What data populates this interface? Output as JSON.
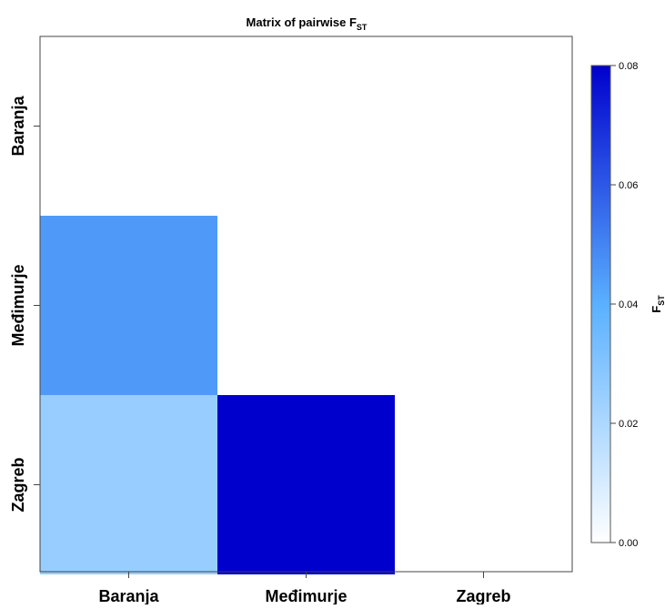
{
  "chart_data": {
    "type": "heatmap",
    "title": "Matrix of pairwise F",
    "title_subscript": "ST",
    "x_categories": [
      "Baranja",
      "Međimurje",
      "Zagreb"
    ],
    "y_categories": [
      "Baranja",
      "Međimurje",
      "Zagreb"
    ],
    "cells": [
      {
        "x": "Baranja",
        "y": "Međimurje",
        "value": 0.045
      },
      {
        "x": "Baranja",
        "y": "Zagreb",
        "value": 0.025
      },
      {
        "x": "Međimurje",
        "y": "Zagreb",
        "value": 0.08
      }
    ],
    "colorbar": {
      "label": "F",
      "label_subscript": "ST",
      "min": 0.0,
      "max": 0.08,
      "ticks": [
        0.0,
        0.02,
        0.04,
        0.06,
        0.08
      ],
      "tick_labels": [
        "0.00",
        "0.02",
        "0.04",
        "0.06",
        "0.08"
      ],
      "color_low": "#ffffff",
      "color_mid": "#5ab0ff",
      "color_high": "#0000cd"
    },
    "grid": false,
    "legend_position": "right"
  }
}
